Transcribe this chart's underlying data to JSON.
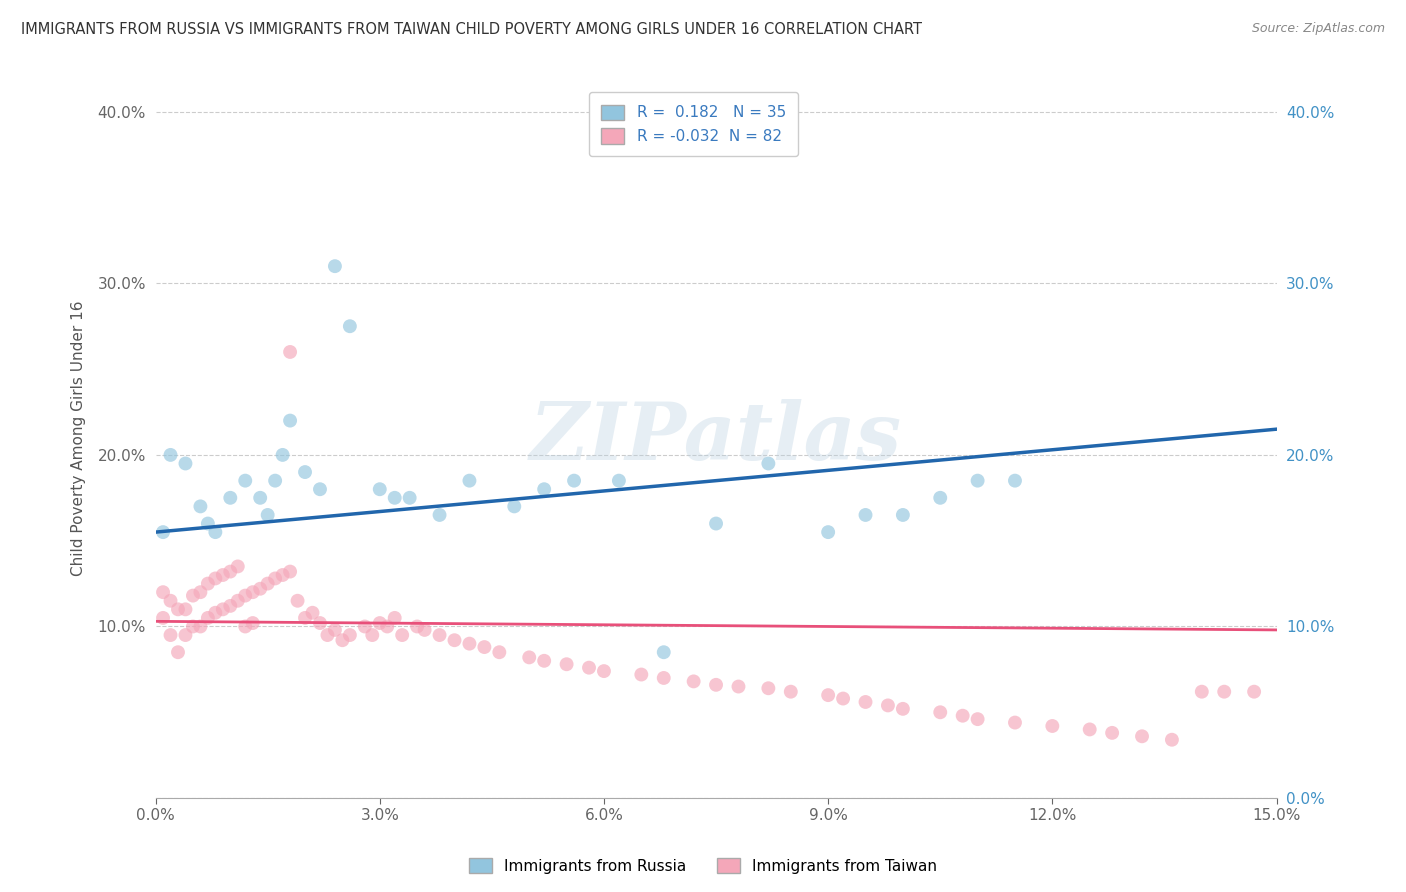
{
  "title": "IMMIGRANTS FROM RUSSIA VS IMMIGRANTS FROM TAIWAN CHILD POVERTY AMONG GIRLS UNDER 16 CORRELATION CHART",
  "source": "Source: ZipAtlas.com",
  "ylabel": "Child Poverty Among Girls Under 16",
  "xlabel_russia": "Immigrants from Russia",
  "xlabel_taiwan": "Immigrants from Taiwan",
  "xmin": 0.0,
  "xmax": 0.15,
  "ymin": 0.0,
  "ymax": 0.42,
  "yticks": [
    0.0,
    0.1,
    0.2,
    0.3,
    0.4
  ],
  "ytick_labels_left": [
    "",
    "10.0%",
    "20.0%",
    "30.0%",
    "40.0%"
  ],
  "ytick_labels_right": [
    "0.0%",
    "10.0%",
    "20.0%",
    "30.0%",
    "40.0%"
  ],
  "xticks": [
    0.0,
    0.03,
    0.06,
    0.09,
    0.12,
    0.15
  ],
  "xtick_labels": [
    "0.0%",
    "3.0%",
    "6.0%",
    "9.0%",
    "12.0%",
    "15.0%"
  ],
  "r_russia": 0.182,
  "n_russia": 35,
  "r_taiwan": -0.032,
  "n_taiwan": 82,
  "color_russia": "#92c5de",
  "color_taiwan": "#f4a7b9",
  "line_color_russia": "#2166ac",
  "line_color_taiwan": "#e8507a",
  "russia_line_y0": 0.155,
  "russia_line_y1": 0.215,
  "taiwan_line_y0": 0.103,
  "taiwan_line_y1": 0.098,
  "russia_x": [
    0.001,
    0.002,
    0.004,
    0.006,
    0.007,
    0.008,
    0.01,
    0.012,
    0.014,
    0.015,
    0.016,
    0.017,
    0.018,
    0.02,
    0.022,
    0.024,
    0.026,
    0.03,
    0.032,
    0.034,
    0.038,
    0.042,
    0.048,
    0.052,
    0.056,
    0.062,
    0.068,
    0.075,
    0.082,
    0.09,
    0.095,
    0.1,
    0.105,
    0.11,
    0.115
  ],
  "russia_y": [
    0.155,
    0.2,
    0.195,
    0.17,
    0.16,
    0.155,
    0.175,
    0.185,
    0.175,
    0.165,
    0.185,
    0.2,
    0.22,
    0.19,
    0.18,
    0.31,
    0.275,
    0.18,
    0.175,
    0.175,
    0.165,
    0.185,
    0.17,
    0.18,
    0.185,
    0.185,
    0.085,
    0.16,
    0.195,
    0.155,
    0.165,
    0.165,
    0.175,
    0.185,
    0.185
  ],
  "taiwan_x": [
    0.001,
    0.001,
    0.002,
    0.002,
    0.003,
    0.003,
    0.004,
    0.004,
    0.005,
    0.005,
    0.006,
    0.006,
    0.007,
    0.007,
    0.008,
    0.008,
    0.009,
    0.009,
    0.01,
    0.01,
    0.011,
    0.011,
    0.012,
    0.012,
    0.013,
    0.013,
    0.014,
    0.015,
    0.016,
    0.017,
    0.018,
    0.018,
    0.019,
    0.02,
    0.021,
    0.022,
    0.023,
    0.024,
    0.025,
    0.026,
    0.028,
    0.029,
    0.03,
    0.031,
    0.032,
    0.033,
    0.035,
    0.036,
    0.038,
    0.04,
    0.042,
    0.044,
    0.046,
    0.05,
    0.052,
    0.055,
    0.058,
    0.06,
    0.065,
    0.068,
    0.072,
    0.075,
    0.078,
    0.082,
    0.085,
    0.09,
    0.092,
    0.095,
    0.098,
    0.1,
    0.105,
    0.108,
    0.11,
    0.115,
    0.12,
    0.125,
    0.128,
    0.132,
    0.136,
    0.14,
    0.143,
    0.147
  ],
  "taiwan_y": [
    0.12,
    0.105,
    0.115,
    0.095,
    0.11,
    0.085,
    0.11,
    0.095,
    0.118,
    0.1,
    0.12,
    0.1,
    0.125,
    0.105,
    0.128,
    0.108,
    0.13,
    0.11,
    0.132,
    0.112,
    0.135,
    0.115,
    0.118,
    0.1,
    0.12,
    0.102,
    0.122,
    0.125,
    0.128,
    0.13,
    0.26,
    0.132,
    0.115,
    0.105,
    0.108,
    0.102,
    0.095,
    0.098,
    0.092,
    0.095,
    0.1,
    0.095,
    0.102,
    0.1,
    0.105,
    0.095,
    0.1,
    0.098,
    0.095,
    0.092,
    0.09,
    0.088,
    0.085,
    0.082,
    0.08,
    0.078,
    0.076,
    0.074,
    0.072,
    0.07,
    0.068,
    0.066,
    0.065,
    0.064,
    0.062,
    0.06,
    0.058,
    0.056,
    0.054,
    0.052,
    0.05,
    0.048,
    0.046,
    0.044,
    0.042,
    0.04,
    0.038,
    0.036,
    0.034,
    0.062,
    0.062,
    0.062
  ]
}
